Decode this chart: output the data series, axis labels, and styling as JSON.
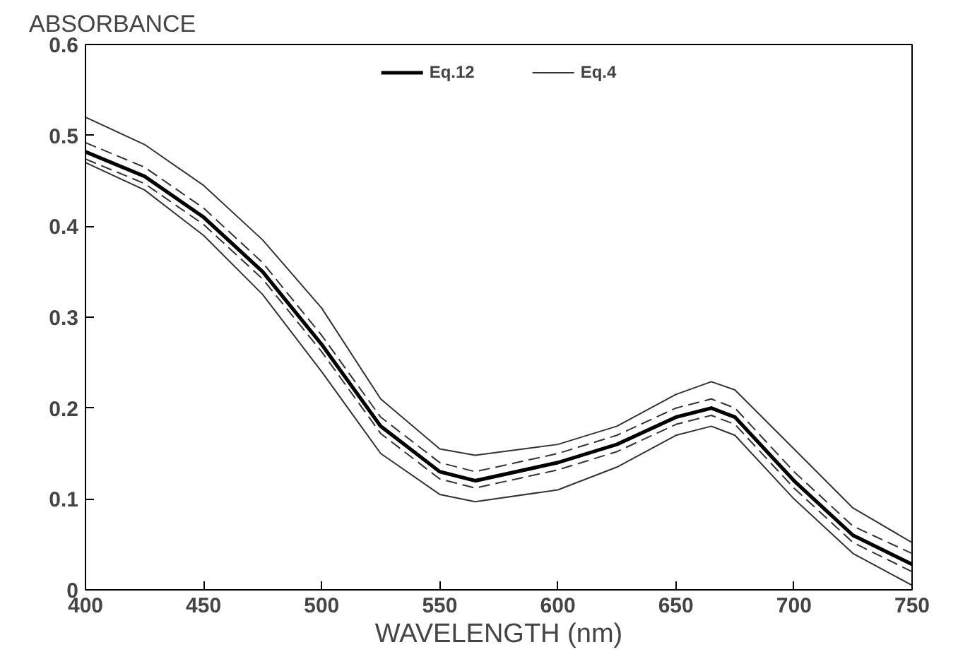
{
  "chart_data": {
    "type": "line",
    "ylabel": "ABSORBANCE",
    "xlabel": "WAVELENGTH (nm)",
    "x": [
      400,
      425,
      450,
      475,
      500,
      525,
      550,
      565,
      600,
      625,
      650,
      665,
      675,
      700,
      725,
      750
    ],
    "series": [
      {
        "name": "Eq.12",
        "color": "#000000",
        "line_style": "solid",
        "values": [
          0.482,
          0.455,
          0.41,
          0.35,
          0.27,
          0.18,
          0.13,
          0.12,
          0.14,
          0.16,
          0.19,
          0.2,
          0.19,
          0.12,
          0.06,
          0.028
        ]
      },
      {
        "name": "Eq.4",
        "color": "#333333",
        "line_style": "solid",
        "values": [
          0.52,
          0.49,
          0.445,
          0.385,
          0.31,
          0.21,
          0.155,
          0.148,
          0.16,
          0.18,
          0.215,
          0.229,
          0.22,
          0.155,
          0.09,
          0.052
        ]
      },
      {
        "color": "#333333",
        "line_style": "solid",
        "values": [
          0.47,
          0.44,
          0.39,
          0.325,
          0.24,
          0.15,
          0.105,
          0.097,
          0.11,
          0.135,
          0.17,
          0.18,
          0.17,
          0.1,
          0.04,
          0.005
        ]
      },
      {
        "color": "#333333",
        "line_style": "dashed",
        "values": [
          0.492,
          0.465,
          0.42,
          0.36,
          0.28,
          0.19,
          0.14,
          0.13,
          0.15,
          0.17,
          0.2,
          0.21,
          0.2,
          0.13,
          0.07,
          0.04
        ]
      },
      {
        "color": "#333333",
        "line_style": "dashed",
        "values": [
          0.474,
          0.447,
          0.402,
          0.342,
          0.262,
          0.172,
          0.122,
          0.112,
          0.132,
          0.152,
          0.182,
          0.192,
          0.182,
          0.112,
          0.052,
          0.02
        ]
      }
    ],
    "xlim": [
      400,
      750
    ],
    "ylim": [
      0,
      0.6
    ],
    "xticks": [
      400,
      450,
      500,
      550,
      600,
      650,
      700,
      750
    ],
    "yticks": [
      0,
      0.1,
      0.2,
      0.3,
      0.4,
      0.5,
      0.6
    ],
    "grid": false,
    "legend": "top",
    "marker": "none"
  }
}
